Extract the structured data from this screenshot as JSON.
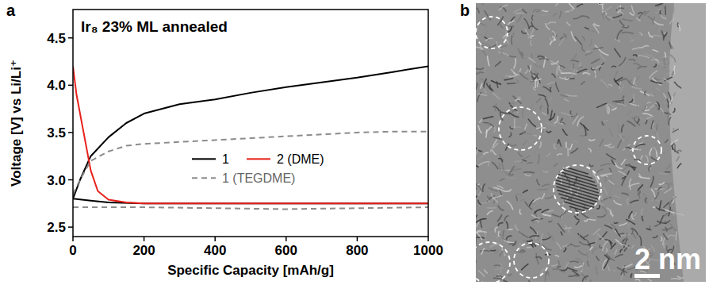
{
  "chart_data": {
    "type": "line",
    "panel_label": "a",
    "title": "Ir₈ 23% ML annealed",
    "x_label": "Specific Capacity [mAh/g]",
    "y_label": "Voltage [V] vs Li/Li⁺",
    "xlim": [
      0,
      1000
    ],
    "xticks": [
      0,
      200,
      400,
      600,
      800,
      1000
    ],
    "ylim": [
      2.4,
      4.8
    ],
    "yticks": [
      2.5,
      {
        "value": 3,
        "label": "3.0"
      },
      3.5,
      {
        "value": 4,
        "label": "4.0"
      },
      4.5
    ],
    "legend": "right",
    "series": [
      {
        "name": "1",
        "color": "#000000",
        "line_style": "solid",
        "x": [
          0,
          20,
          50,
          100,
          150,
          200,
          300,
          400,
          500,
          600,
          700,
          800,
          900,
          1000,
          null,
          0,
          50,
          100,
          200,
          400,
          600,
          800,
          1000
        ],
        "values": [
          2.8,
          3.0,
          3.25,
          3.45,
          3.6,
          3.7,
          3.8,
          3.85,
          3.92,
          3.98,
          4.03,
          4.08,
          4.14,
          4.2,
          null,
          2.8,
          2.78,
          2.76,
          2.75,
          2.75,
          2.75,
          2.75,
          2.75
        ]
      },
      {
        "name": "2 (DME)",
        "color": "#e8211b",
        "line_style": "solid",
        "x": [
          0,
          10,
          30,
          50,
          70,
          100,
          150,
          200,
          400,
          600,
          800,
          1000
        ],
        "values": [
          4.2,
          3.9,
          3.5,
          3.1,
          2.88,
          2.79,
          2.76,
          2.75,
          2.75,
          2.75,
          2.75,
          2.75
        ]
      },
      {
        "name": "1 (TEGDME)",
        "color": "#8c8c8c",
        "line_style": "dashed",
        "x": [
          0,
          20,
          50,
          100,
          150,
          200,
          300,
          400,
          500,
          600,
          700,
          800,
          900,
          1000,
          null,
          0,
          200,
          400,
          600,
          800,
          1000
        ],
        "values": [
          2.85,
          3.0,
          3.2,
          3.3,
          3.36,
          3.38,
          3.4,
          3.42,
          3.44,
          3.46,
          3.48,
          3.5,
          3.51,
          3.51,
          null,
          2.71,
          2.71,
          2.7,
          2.69,
          2.7,
          2.71
        ]
      }
    ]
  },
  "image": {
    "panel_label": "b",
    "scale_bar": "2 nm"
  }
}
